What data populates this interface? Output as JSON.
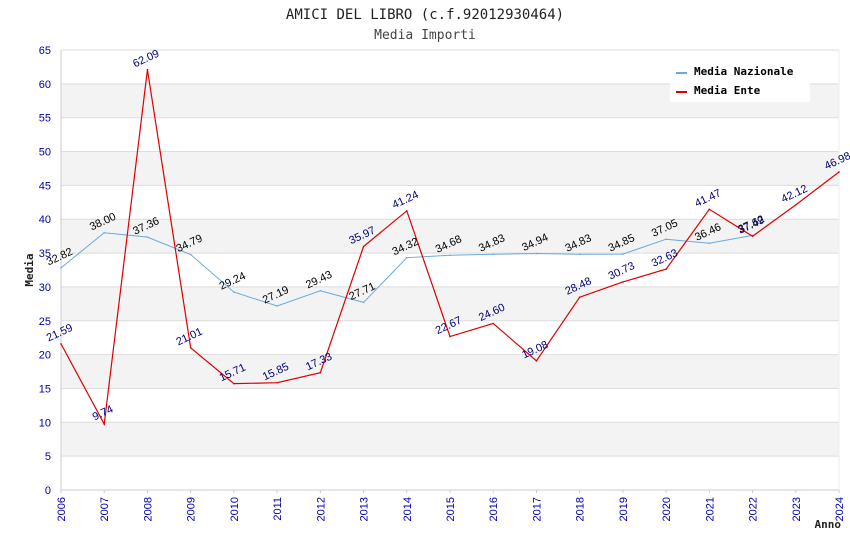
{
  "chart_data": {
    "type": "line",
    "title": "AMICI DEL LIBRO (c.f.92012930464)",
    "subtitle": "Media Importi",
    "xlabel": "Anno",
    "ylabel": "Media",
    "ylim": [
      0,
      65
    ],
    "yticks": [
      "0",
      "5",
      "10",
      "15",
      "20",
      "25",
      "30",
      "35",
      "40",
      "45",
      "50",
      "55",
      "60",
      "65"
    ],
    "grid": true,
    "legend_position": "top-right",
    "categories": [
      "2006",
      "2007",
      "2008",
      "2009",
      "2010",
      "2011",
      "2012",
      "2013",
      "2014",
      "2015",
      "2016",
      "2017",
      "2018",
      "2019",
      "2020",
      "2021",
      "2022",
      "2023",
      "2024"
    ],
    "series": [
      {
        "name": "Media Nazionale",
        "color": "#66aadd",
        "values": [
          32.82,
          38.0,
          37.36,
          34.79,
          29.24,
          27.19,
          29.43,
          27.71,
          34.32,
          34.68,
          34.83,
          34.94,
          34.83,
          34.85,
          37.05,
          36.46,
          37.62,
          null,
          null
        ],
        "labels": [
          "32.82",
          "38.00",
          "37.36",
          "34.79",
          "29.24",
          "27.19",
          "29.43",
          "27.71",
          "34.32",
          "34.68",
          "34.83",
          "34.94",
          "34.83",
          "34.85",
          "37.05",
          "36.46",
          "37.62",
          "",
          ""
        ]
      },
      {
        "name": "Media Ente",
        "color": "#dd0000",
        "values": [
          21.59,
          9.74,
          62.09,
          21.01,
          15.71,
          15.85,
          17.33,
          35.97,
          41.24,
          22.67,
          24.6,
          19.08,
          28.48,
          30.73,
          32.63,
          41.47,
          37.49,
          42.12,
          46.98
        ],
        "labels": [
          "21.59",
          "9.74",
          "62.09",
          "21.01",
          "15.71",
          "15.85",
          "17.33",
          "35.97",
          "41.24",
          "22.67",
          "24.60",
          "19.08",
          "28.48",
          "30.73",
          "32.63",
          "41.47",
          "37.49",
          "42.12",
          "46.98"
        ]
      }
    ]
  }
}
